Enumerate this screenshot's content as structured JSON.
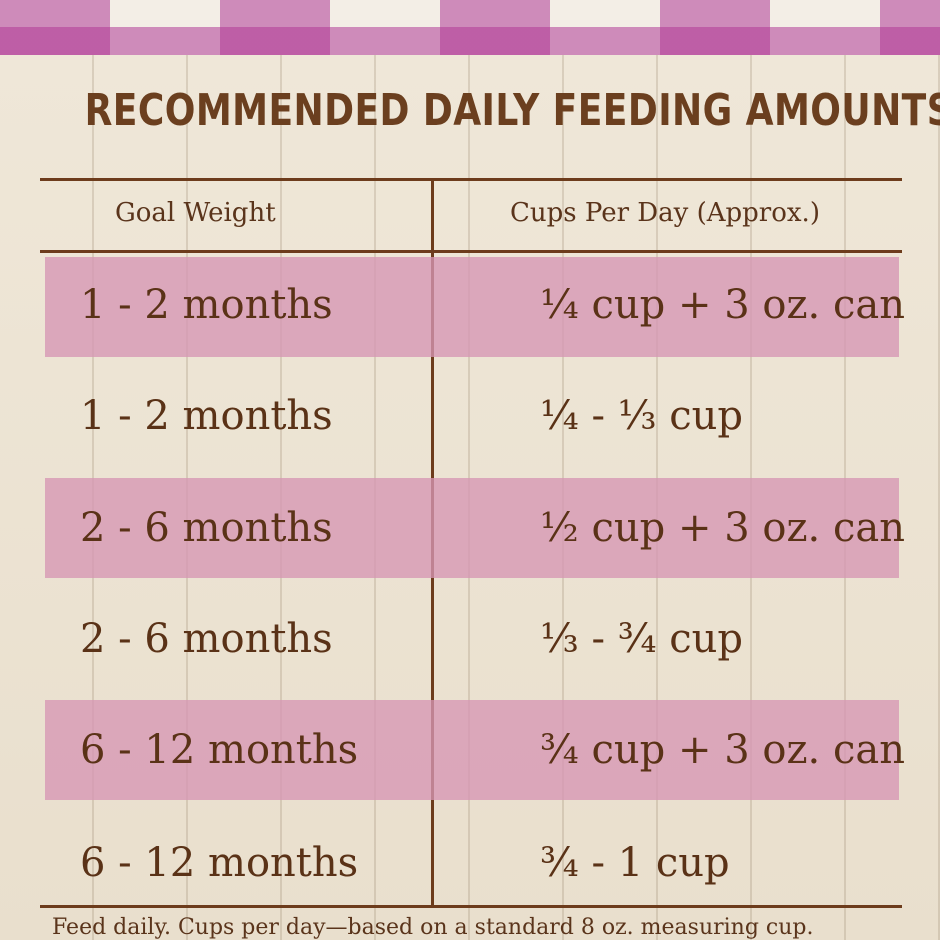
{
  "title": "RECOMMENDED DAILY FEEDING AMOUNTS:",
  "table": {
    "headers": [
      "Goal Weight",
      "Cups Per Day (Approx.)"
    ],
    "rows": [
      {
        "weight": "1 - 2 months",
        "cups": "¼ cup + 3 oz. can"
      },
      {
        "weight": "1 - 2 months",
        "cups": "¼ - ⅓ cup"
      },
      {
        "weight": "2 - 6 months",
        "cups": "½ cup + 3 oz. can"
      },
      {
        "weight": "2 - 6 months",
        "cups": "⅓ - ¾ cup"
      },
      {
        "weight": "6 - 12 months",
        "cups": "¾ cup + 3 oz. can"
      },
      {
        "weight": "6 - 12 months",
        "cups": "¾ - 1 cup"
      }
    ]
  },
  "footnote": "Feed daily. Cups per day—based on a standard 8 oz. measuring cup.",
  "colors": {
    "text_brown": "#5a3217",
    "stripe_pink": "#d696b4",
    "gingham_magenta": "#b03a96"
  }
}
